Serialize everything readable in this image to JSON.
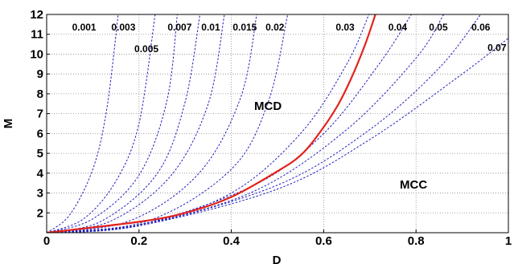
{
  "chart_data": {
    "type": "line",
    "xlabel": "D",
    "ylabel": "M",
    "xlim": [
      0,
      1
    ],
    "ylim": [
      1,
      12
    ],
    "x_ticks": [
      "0",
      "0.2",
      "0.4",
      "0.6",
      "0.8",
      "1"
    ],
    "y_ticks": [
      "2",
      "3",
      "4",
      "5",
      "6",
      "7",
      "8",
      "9",
      "10",
      "11",
      "12"
    ],
    "grid": true,
    "regions": [
      "MCD",
      "MCC"
    ],
    "contour_colors": {
      "contour": "#1f1fbf",
      "boundary": "#e2231a"
    },
    "series": [
      {
        "name": "0.001",
        "points": [
          [
            0,
            1
          ],
          [
            0.05,
            1.9
          ],
          [
            0.1,
            4.2
          ],
          [
            0.13,
            7.2
          ],
          [
            0.155,
            12
          ]
        ]
      },
      {
        "name": "0.003",
        "points": [
          [
            0,
            1
          ],
          [
            0.08,
            1.7
          ],
          [
            0.15,
            3.6
          ],
          [
            0.2,
            6.5
          ],
          [
            0.235,
            12
          ]
        ]
      },
      {
        "name": "0.005",
        "points": [
          [
            0,
            1
          ],
          [
            0.1,
            1.7
          ],
          [
            0.2,
            3.9
          ],
          [
            0.26,
            7.6
          ],
          [
            0.283,
            12
          ]
        ]
      },
      {
        "name": "0.007",
        "points": [
          [
            0,
            1
          ],
          [
            0.12,
            1.6
          ],
          [
            0.24,
            4.0
          ],
          [
            0.3,
            7.6
          ],
          [
            0.332,
            12
          ]
        ]
      },
      {
        "name": "0.01",
        "points": [
          [
            0,
            1
          ],
          [
            0.14,
            1.6
          ],
          [
            0.27,
            3.9
          ],
          [
            0.35,
            7.5
          ],
          [
            0.385,
            12
          ]
        ]
      },
      {
        "name": "0.015",
        "points": [
          [
            0,
            1
          ],
          [
            0.18,
            1.6
          ],
          [
            0.33,
            4.0
          ],
          [
            0.42,
            7.8
          ],
          [
            0.455,
            12
          ]
        ]
      },
      {
        "name": "0.02",
        "points": [
          [
            0,
            1
          ],
          [
            0.22,
            1.6
          ],
          [
            0.4,
            4.2
          ],
          [
            0.48,
            7.6
          ],
          [
            0.522,
            12
          ]
        ]
      },
      {
        "name": "0.03",
        "points": [
          [
            0,
            1
          ],
          [
            0.2,
            1.4
          ],
          [
            0.4,
            3.0
          ],
          [
            0.55,
            6.0
          ],
          [
            0.65,
            9.5
          ],
          [
            0.698,
            12
          ]
        ]
      },
      {
        "name": "0.04",
        "points": [
          [
            0,
            1
          ],
          [
            0.2,
            1.4
          ],
          [
            0.45,
            3.4
          ],
          [
            0.6,
            6.0
          ],
          [
            0.72,
            9.5
          ],
          [
            0.79,
            12
          ]
        ]
      },
      {
        "name": "0.05",
        "points": [
          [
            0,
            1
          ],
          [
            0.2,
            1.4
          ],
          [
            0.45,
            3.1
          ],
          [
            0.65,
            6.2
          ],
          [
            0.8,
            9.8
          ],
          [
            0.86,
            12
          ]
        ]
      },
      {
        "name": "0.06",
        "points": [
          [
            0,
            1
          ],
          [
            0.2,
            1.35
          ],
          [
            0.5,
            3.4
          ],
          [
            0.7,
            6.2
          ],
          [
            0.85,
            9.3
          ],
          [
            0.94,
            12
          ]
        ]
      },
      {
        "name": "0.07",
        "points": [
          [
            0,
            1
          ],
          [
            0.2,
            1.35
          ],
          [
            0.5,
            3.2
          ],
          [
            0.7,
            5.7
          ],
          [
            0.9,
            9.0
          ],
          [
            1.0,
            10.8
          ]
        ]
      },
      {
        "name": "boundary",
        "points": [
          [
            0,
            1
          ],
          [
            0.2,
            1.55
          ],
          [
            0.3,
            2.0
          ],
          [
            0.4,
            2.8
          ],
          [
            0.5,
            4.1
          ],
          [
            0.55,
            4.9
          ],
          [
            0.59,
            6.0
          ],
          [
            0.63,
            7.4
          ],
          [
            0.66,
            8.8
          ],
          [
            0.69,
            10.5
          ],
          [
            0.712,
            12
          ]
        ]
      }
    ]
  }
}
